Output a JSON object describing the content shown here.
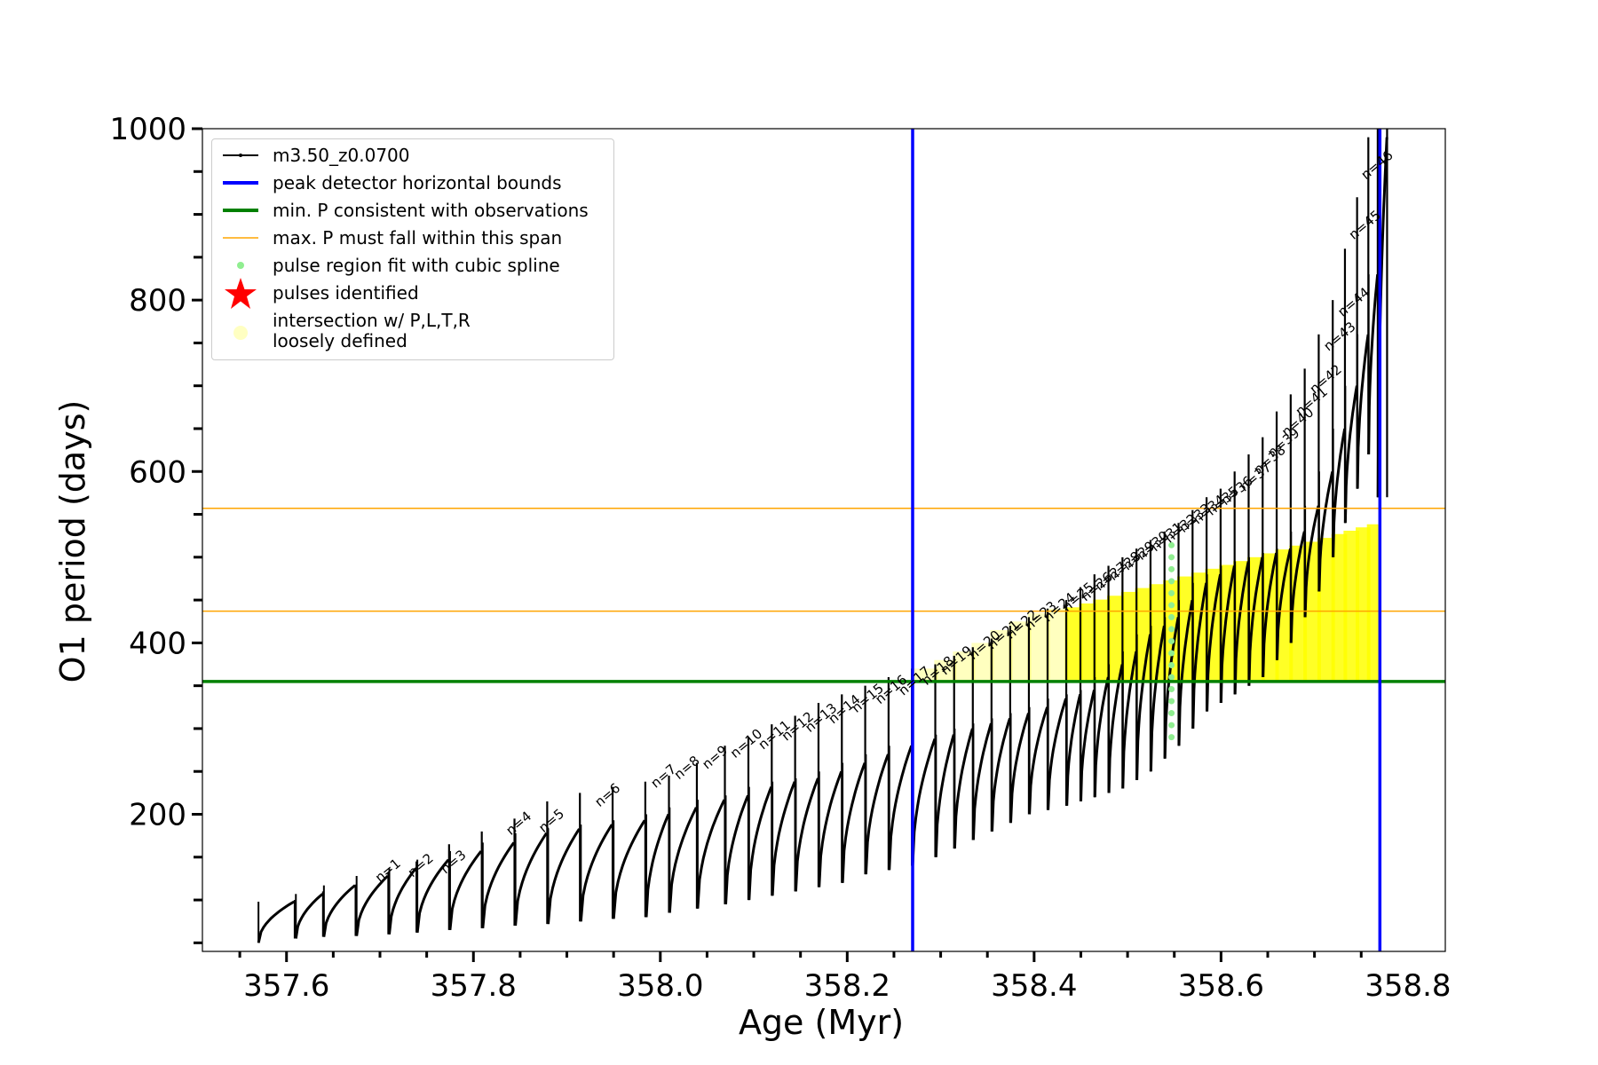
{
  "chart_data": {
    "type": "line",
    "xlabel": "Age (Myr)",
    "ylabel": "O1 period (days)",
    "xlim": [
      357.51,
      358.84
    ],
    "ylim": [
      40,
      1000
    ],
    "x_ticks": [
      "357.6",
      "357.8",
      "358.0",
      "358.2",
      "358.4",
      "358.6",
      "358.8"
    ],
    "y_ticks": [
      "200",
      "400",
      "600",
      "800",
      "1000"
    ],
    "colors": {
      "model": "#000000",
      "bounds": "#0000ff",
      "min_p": "#008000",
      "max_p": "#ffa500",
      "spline": "#90ee90",
      "pulses": "#ff0000",
      "intersection": "#ffff00"
    },
    "legend": [
      {
        "key": "model",
        "label": "m3.50_z0.0700"
      },
      {
        "key": "bounds",
        "label": "peak detector horizontal bounds"
      },
      {
        "key": "min_p",
        "label": "min. P consistent with observations"
      },
      {
        "key": "max_p",
        "label": "max. P must fall within this span"
      },
      {
        "key": "spline",
        "label": "pulse region fit with cubic spline"
      },
      {
        "key": "pulses",
        "label": "pulses identified"
      },
      {
        "key": "intersection",
        "label": "intersection w/ P,L,T,R",
        "label2": "loosely defined"
      }
    ],
    "vlines_blue": [
      358.27,
      358.77
    ],
    "hline_green": 355,
    "hlines_orange": [
      437,
      557
    ],
    "pulses": {
      "x": [
        357.57,
        357.61,
        357.64,
        357.675,
        357.71,
        357.74,
        357.775,
        357.81,
        357.845,
        357.88,
        357.915,
        357.95,
        357.985,
        358.01,
        358.04,
        358.07,
        358.095,
        358.12,
        358.145,
        358.17,
        358.195,
        358.22,
        358.245,
        358.27,
        358.295,
        358.315,
        358.335,
        358.355,
        358.375,
        358.395,
        358.415,
        358.435,
        358.45,
        358.465,
        358.48,
        358.495,
        358.51,
        358.525,
        358.54,
        358.555,
        358.57,
        358.585,
        358.6,
        358.615,
        358.63,
        358.645,
        358.66,
        358.675,
        358.69,
        358.705,
        358.72,
        358.733,
        358.746,
        358.758,
        358.768
      ],
      "min": [
        50,
        55,
        57,
        58,
        60,
        62,
        65,
        67,
        70,
        72,
        75,
        78,
        80,
        85,
        90,
        95,
        100,
        105,
        110,
        115,
        120,
        130,
        135,
        140,
        150,
        160,
        170,
        180,
        190,
        200,
        205,
        210,
        215,
        220,
        225,
        230,
        240,
        250,
        265,
        280,
        300,
        320,
        330,
        340,
        350,
        360,
        380,
        400,
        430,
        460,
        500,
        540,
        580,
        620,
        570
      ],
      "peak": [
        98,
        107,
        117,
        128,
        137,
        147,
        157,
        167,
        178,
        183,
        188,
        193,
        200,
        208,
        217,
        222,
        232,
        238,
        242,
        250,
        260,
        270,
        280,
        288,
        293,
        300,
        306,
        312,
        318,
        325,
        335,
        340,
        345,
        360,
        375,
        390,
        410,
        420,
        430,
        450,
        470,
        480,
        490,
        495,
        500,
        505,
        510,
        530,
        560,
        600,
        650,
        700,
        760,
        830,
        990
      ],
      "spike": [
        100,
        110,
        118,
        132,
        145,
        165,
        180,
        195,
        215,
        225,
        232,
        238,
        245,
        260,
        280,
        290,
        305,
        315,
        330,
        340,
        350,
        360,
        370,
        375,
        385,
        395,
        405,
        420,
        430,
        440,
        450,
        465,
        480,
        490,
        500,
        510,
        520,
        530,
        540,
        555,
        570,
        580,
        600,
        620,
        640,
        670,
        690,
        720,
        760,
        800,
        860,
        920,
        990,
        1000,
        1000
      ]
    },
    "annotations": [
      {
        "x": 357.7,
        "y": 120,
        "text": "n=1"
      },
      {
        "x": 357.735,
        "y": 126,
        "text": "n=2"
      },
      {
        "x": 357.77,
        "y": 130,
        "text": "n=3"
      },
      {
        "x": 357.84,
        "y": 175,
        "text": "n=4"
      },
      {
        "x": 357.875,
        "y": 178,
        "text": "n=5"
      },
      {
        "x": 357.935,
        "y": 208,
        "text": "n=6"
      },
      {
        "x": 357.995,
        "y": 230,
        "text": "n=7"
      },
      {
        "x": 358.02,
        "y": 240,
        "text": "n=8"
      },
      {
        "x": 358.05,
        "y": 252,
        "text": "n=9"
      },
      {
        "x": 358.08,
        "y": 265,
        "text": "n=10"
      },
      {
        "x": 358.11,
        "y": 275,
        "text": "n=11"
      },
      {
        "x": 358.135,
        "y": 285,
        "text": "n=12"
      },
      {
        "x": 358.16,
        "y": 295,
        "text": "n=13"
      },
      {
        "x": 358.185,
        "y": 305,
        "text": "n=14"
      },
      {
        "x": 358.21,
        "y": 318,
        "text": "n=15"
      },
      {
        "x": 358.235,
        "y": 328,
        "text": "n=16"
      },
      {
        "x": 358.26,
        "y": 338,
        "text": "n=17"
      },
      {
        "x": 358.285,
        "y": 350,
        "text": "n=18"
      },
      {
        "x": 358.305,
        "y": 362,
        "text": "n=19"
      },
      {
        "x": 358.335,
        "y": 380,
        "text": "n=20"
      },
      {
        "x": 358.355,
        "y": 392,
        "text": "n=21"
      },
      {
        "x": 358.375,
        "y": 404,
        "text": "n=22"
      },
      {
        "x": 358.395,
        "y": 414,
        "text": "n=23"
      },
      {
        "x": 358.415,
        "y": 424,
        "text": "n=24"
      },
      {
        "x": 358.435,
        "y": 436,
        "text": "n=25"
      },
      {
        "x": 358.455,
        "y": 448,
        "text": "n=26"
      },
      {
        "x": 358.47,
        "y": 460,
        "text": "n=27"
      },
      {
        "x": 358.485,
        "y": 472,
        "text": "n=28"
      },
      {
        "x": 358.5,
        "y": 484,
        "text": "n=29"
      },
      {
        "x": 358.515,
        "y": 496,
        "text": "n=30"
      },
      {
        "x": 358.53,
        "y": 506,
        "text": "n=31"
      },
      {
        "x": 358.545,
        "y": 516,
        "text": "n=32"
      },
      {
        "x": 358.56,
        "y": 528,
        "text": "n=33"
      },
      {
        "x": 358.575,
        "y": 538,
        "text": "n=34"
      },
      {
        "x": 358.59,
        "y": 548,
        "text": "n=35"
      },
      {
        "x": 358.605,
        "y": 560,
        "text": "n=36"
      },
      {
        "x": 358.625,
        "y": 576,
        "text": "n=37"
      },
      {
        "x": 358.64,
        "y": 596,
        "text": "n=38"
      },
      {
        "x": 358.655,
        "y": 616,
        "text": "n=39"
      },
      {
        "x": 358.67,
        "y": 640,
        "text": "n=40"
      },
      {
        "x": 358.685,
        "y": 664,
        "text": "n=41"
      },
      {
        "x": 358.7,
        "y": 690,
        "text": "n=42"
      },
      {
        "x": 358.715,
        "y": 740,
        "text": "n=43"
      },
      {
        "x": 358.73,
        "y": 780,
        "text": "n=44"
      },
      {
        "x": 358.742,
        "y": 870,
        "text": "n=45"
      },
      {
        "x": 358.755,
        "y": 940,
        "text": "n=46"
      }
    ]
  }
}
